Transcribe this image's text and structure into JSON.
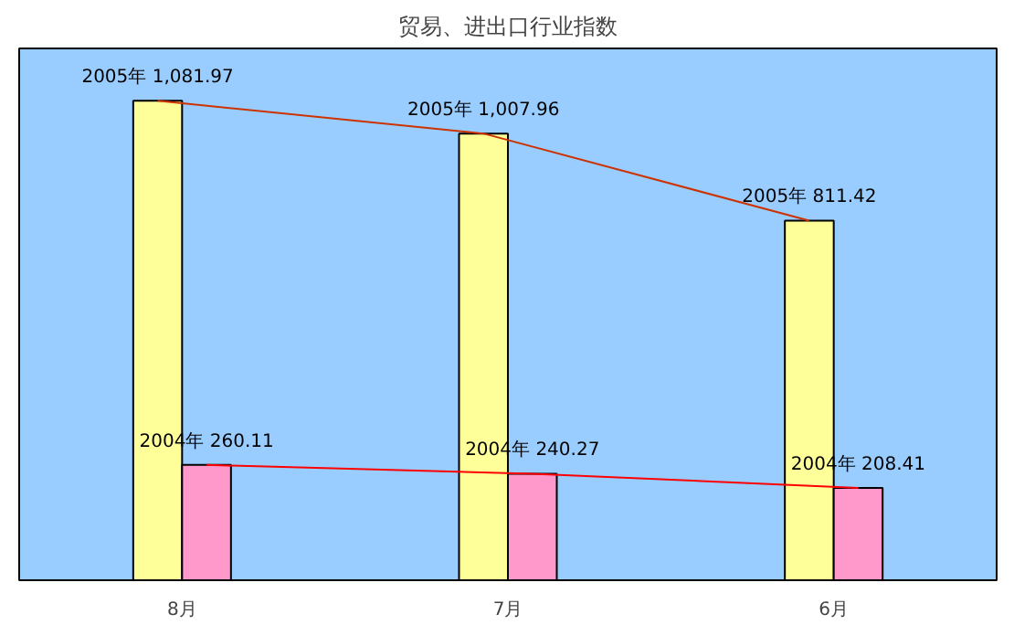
{
  "chart_data": {
    "type": "bar",
    "title": "贸易、进出口行业指数",
    "categories": [
      "8月",
      "7月",
      "6月"
    ],
    "ylim": [
      0,
      1200
    ],
    "tick_labels": "x",
    "grid": false,
    "series": [
      {
        "color": "#ffff99",
        "values": [
          1081.97,
          1007.96,
          811.42
        ],
        "value_labels": [
          "2005年 1,081.97",
          "2005年 1,007.96",
          "2005年 811.42"
        ]
      },
      {
        "color": "#ff99cc",
        "values": [
          260.11,
          240.27,
          208.41
        ],
        "value_labels": [
          "2004年 260.11",
          "2004年 240.27",
          "2004年 208.41"
        ]
      },
      {
        "type": "line",
        "color": "#cc3300",
        "values": [
          1081.97,
          1007.96,
          811.42
        ]
      },
      {
        "type": "line",
        "color": "#ff0000",
        "values": [
          260.11,
          240.27,
          208.41
        ]
      }
    ]
  }
}
